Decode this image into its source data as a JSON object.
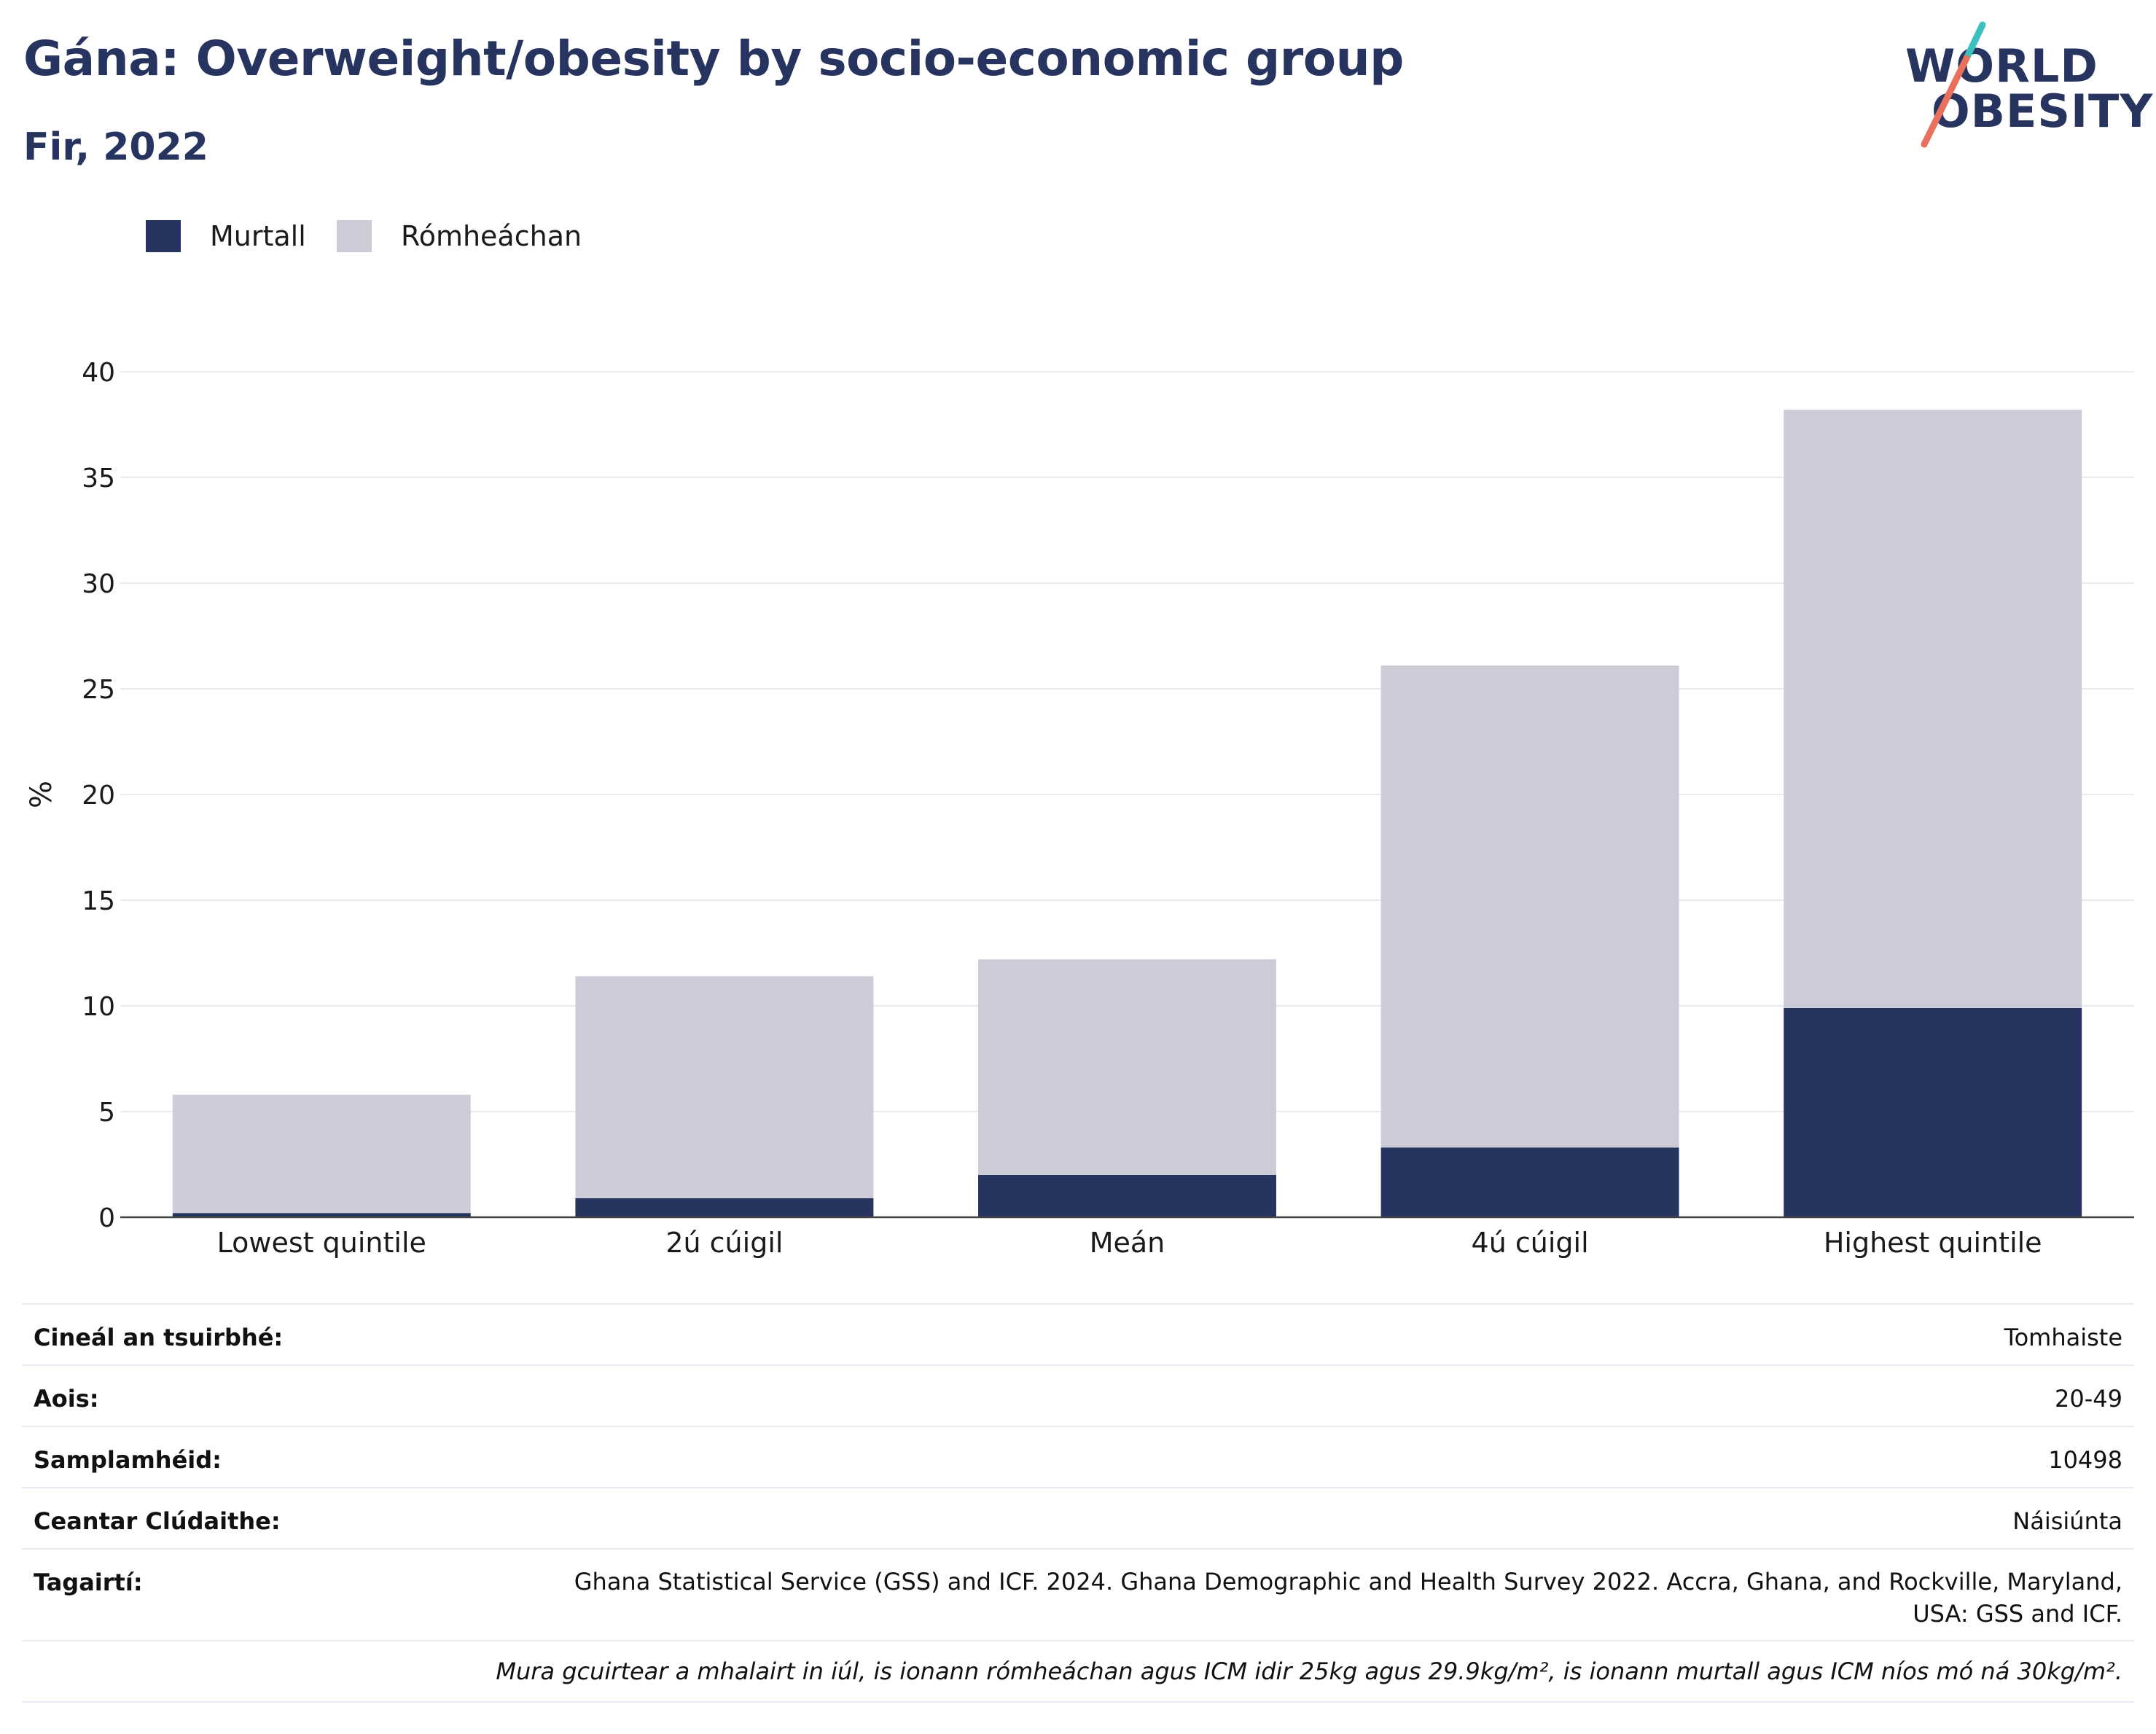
{
  "header": {
    "title": "Gána: Overweight/obesity by socio-economic group",
    "subtitle": "Fir, 2022"
  },
  "logo": {
    "line1": "WORLD",
    "line2": "OBESITY",
    "colors": {
      "text": "#283460",
      "slash_top": "#3bbfbf",
      "slash_bottom": "#e8705d"
    }
  },
  "legend": [
    {
      "label": "Murtall",
      "color": "#283460"
    },
    {
      "label": "Rómheáchan",
      "color": "#cbccd8"
    }
  ],
  "chart_data": {
    "type": "bar",
    "stacked": true,
    "categories": [
      "Lowest quintile",
      "2ú cúigil",
      "Meán",
      "4ú cúigil",
      "Highest quintile"
    ],
    "series": [
      {
        "name": "Murtall",
        "color": "#283460",
        "values": [
          0.2,
          0.9,
          2.0,
          3.3,
          9.9
        ]
      },
      {
        "name": "Rómheáchan",
        "color": "#cbccd8",
        "values": [
          5.6,
          10.5,
          10.2,
          22.8,
          28.3
        ]
      }
    ],
    "ylabel": "%",
    "xlabel": "",
    "ylim": [
      0,
      40
    ],
    "yticks": [
      0,
      5,
      10,
      15,
      20,
      25,
      30,
      35,
      40
    ],
    "grid": true,
    "legend_position": "top-left"
  },
  "info": {
    "rows": [
      {
        "key": "Cineál an tsuirbhé:",
        "value": "Tomhaiste"
      },
      {
        "key": "Aois:",
        "value": "20-49"
      },
      {
        "key": "Samplamhéid:",
        "value": "10498"
      },
      {
        "key": "Ceantar Clúdaithe:",
        "value": "Náisiúnta"
      }
    ],
    "reference_key": "Tagairtí:",
    "reference_value": "Ghana Statistical Service (GSS) and ICF. 2024. Ghana Demographic and Health Survey 2022. Accra, Ghana, and Rockville, Maryland, USA: GSS and ICF.",
    "note": "Mura gcuirtear a mhalairt in iúl, is ionann rómheáchan agus ICM idir 25kg agus 29.9kg/m², is ionann murtall agus ICM níos mó ná 30kg/m²."
  }
}
